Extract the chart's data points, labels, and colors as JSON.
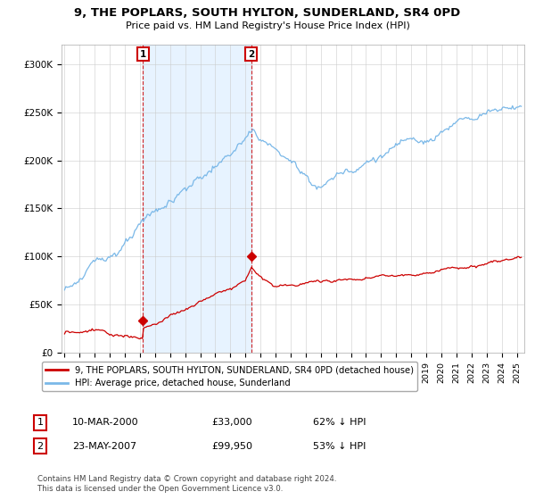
{
  "title": "9, THE POPLARS, SOUTH HYLTON, SUNDERLAND, SR4 0PD",
  "subtitle": "Price paid vs. HM Land Registry's House Price Index (HPI)",
  "legend_line1": "9, THE POPLARS, SOUTH HYLTON, SUNDERLAND, SR4 0PD (detached house)",
  "legend_line2": "HPI: Average price, detached house, Sunderland",
  "footnote": "Contains HM Land Registry data © Crown copyright and database right 2024.\nThis data is licensed under the Open Government Licence v3.0.",
  "marker1_date": "10-MAR-2000",
  "marker1_price": "£33,000",
  "marker1_hpi": "62% ↓ HPI",
  "marker1_x": 2000.19,
  "marker1_y": 33000,
  "marker2_date": "23-MAY-2007",
  "marker2_price": "£99,950",
  "marker2_hpi": "53% ↓ HPI",
  "marker2_x": 2007.39,
  "marker2_y": 99950,
  "hpi_color": "#7ab8e8",
  "hpi_fill_color": "#ddeeff",
  "price_color": "#cc0000",
  "background_color": "#ffffff",
  "grid_color": "#cccccc",
  "ylim": [
    0,
    320000
  ],
  "xlim": [
    1994.8,
    2025.5
  ]
}
